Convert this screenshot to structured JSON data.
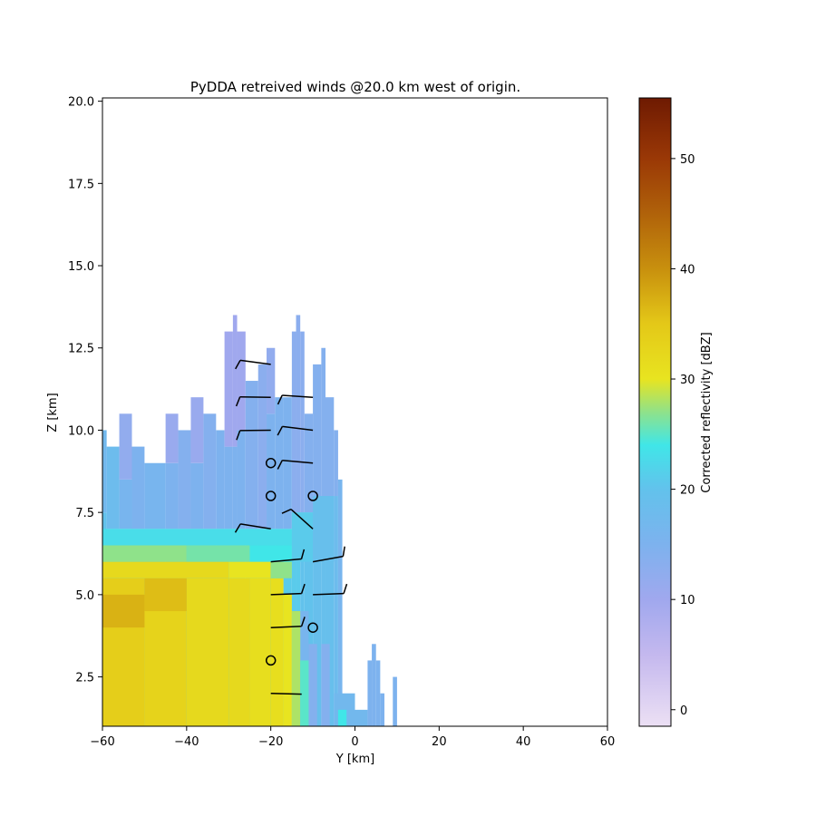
{
  "chart_data": {
    "type": "heatmap",
    "title": "PyDDA retreived winds @20.0 km west of origin.",
    "xlabel": "Y [km]",
    "ylabel": "Z [km]",
    "xlim": [
      -60,
      60
    ],
    "ylim": [
      1.0,
      20.1
    ],
    "xticks": [
      -60,
      -40,
      -20,
      0,
      20,
      40,
      60
    ],
    "xtick_labels": [
      "−60",
      "−40",
      "−20",
      "0",
      "20",
      "40",
      "60"
    ],
    "yticks": [
      2.5,
      5.0,
      7.5,
      10.0,
      12.5,
      15.0,
      17.5,
      20.0
    ],
    "ytick_labels": [
      "2.5",
      "5.0",
      "7.5",
      "10.0",
      "12.5",
      "15.0",
      "17.5",
      "20.0"
    ],
    "grid": false,
    "colorbar": {
      "label": "Corrected reflectivity [dBZ]",
      "range": [
        -1.5,
        55.5
      ],
      "ticks": [
        0,
        10,
        20,
        30,
        40,
        50
      ],
      "tick_labels": [
        "0",
        "10",
        "20",
        "30",
        "40",
        "50"
      ],
      "colormap_stops": [
        {
          "v": -1.5,
          "c": "#ece0f4"
        },
        {
          "v": 5,
          "c": "#c4b8ee"
        },
        {
          "v": 10,
          "c": "#a0a8ee"
        },
        {
          "v": 15,
          "c": "#7db2ee"
        },
        {
          "v": 20,
          "c": "#62c2ec"
        },
        {
          "v": 24,
          "c": "#40e6e8"
        },
        {
          "v": 27,
          "c": "#8fe28a"
        },
        {
          "v": 30,
          "c": "#e8e420"
        },
        {
          "v": 35,
          "c": "#e4c818"
        },
        {
          "v": 40,
          "c": "#c8900e"
        },
        {
          "v": 45,
          "c": "#b0620a"
        },
        {
          "v": 50,
          "c": "#9a3806"
        },
        {
          "v": 55.5,
          "c": "#6e1a02"
        }
      ]
    },
    "reflectivity": {
      "cell_width_km": 1,
      "cell_height_km": 0.5,
      "columns": [
        {
          "y0": -60,
          "y1": -59,
          "top": 10.0,
          "layers": [
            {
              "z": 7.5,
              "v": 20
            },
            {
              "z": 10.0,
              "v": 17
            }
          ]
        },
        {
          "y0": -59,
          "y1": -56,
          "top": 9.5,
          "layers": [
            {
              "z": 7.0,
              "v": 22
            },
            {
              "z": 9.5,
              "v": 18
            }
          ]
        },
        {
          "y0": -56,
          "y1": -53,
          "top": 10.5,
          "layers": [
            {
              "z": 7.0,
              "v": 22
            },
            {
              "z": 8.5,
              "v": 16
            },
            {
              "z": 10.5,
              "v": 12
            }
          ]
        },
        {
          "y0": -53,
          "y1": -50,
          "top": 9.5,
          "layers": [
            {
              "z": 7.0,
              "v": 21
            },
            {
              "z": 9.5,
              "v": 15
            }
          ]
        },
        {
          "y0": -50,
          "y1": -45,
          "top": 9.0,
          "layers": [
            {
              "z": 7.0,
              "v": 21
            },
            {
              "z": 9.0,
              "v": 16
            }
          ]
        },
        {
          "y0": -45,
          "y1": -42,
          "top": 10.5,
          "layers": [
            {
              "z": 7.0,
              "v": 21
            },
            {
              "z": 9.0,
              "v": 15
            },
            {
              "z": 10.5,
              "v": 11
            }
          ]
        },
        {
          "y0": -42,
          "y1": -39,
          "top": 10.0,
          "layers": [
            {
              "z": 7.0,
              "v": 21
            },
            {
              "z": 10.0,
              "v": 14
            }
          ]
        },
        {
          "y0": -39,
          "y1": -36,
          "top": 11.0,
          "layers": [
            {
              "z": 7.0,
              "v": 21
            },
            {
              "z": 9.0,
              "v": 15
            },
            {
              "z": 11.0,
              "v": 11
            }
          ]
        },
        {
          "y0": -36,
          "y1": -33,
          "top": 10.5,
          "layers": [
            {
              "z": 7.0,
              "v": 21
            },
            {
              "z": 10.5,
              "v": 14
            }
          ]
        },
        {
          "y0": -33,
          "y1": -31,
          "top": 10.0,
          "layers": [
            {
              "z": 7.0,
              "v": 21
            },
            {
              "z": 10.0,
              "v": 15
            }
          ]
        },
        {
          "y0": -31,
          "y1": -29,
          "top": 13.0,
          "layers": [
            {
              "z": 7.0,
              "v": 21
            },
            {
              "z": 9.5,
              "v": 15
            },
            {
              "z": 13.0,
              "v": 10
            }
          ]
        },
        {
          "y0": -29,
          "y1": -28,
          "top": 13.5,
          "layers": [
            {
              "z": 7.0,
              "v": 21
            },
            {
              "z": 9.5,
              "v": 15
            },
            {
              "z": 13.5,
              "v": 10
            }
          ]
        },
        {
          "y0": -28,
          "y1": -26,
          "top": 13.0,
          "layers": [
            {
              "z": 7.0,
              "v": 21
            },
            {
              "z": 10.0,
              "v": 15
            },
            {
              "z": 13.0,
              "v": 10
            }
          ]
        },
        {
          "y0": -26,
          "y1": -23,
          "top": 11.5,
          "layers": [
            {
              "z": 7.0,
              "v": 21
            },
            {
              "z": 11.5,
              "v": 14
            }
          ]
        },
        {
          "y0": -23,
          "y1": -21,
          "top": 12.0,
          "layers": [
            {
              "z": 7.0,
              "v": 21
            },
            {
              "z": 12.0,
              "v": 13
            }
          ]
        },
        {
          "y0": -21,
          "y1": -19,
          "top": 12.5,
          "layers": [
            {
              "z": 7.0,
              "v": 21
            },
            {
              "z": 10.5,
              "v": 15
            },
            {
              "z": 12.5,
              "v": 12
            }
          ]
        },
        {
          "y0": -19,
          "y1": -17,
          "top": 11.0,
          "layers": [
            {
              "z": 7.0,
              "v": 21
            },
            {
              "z": 11.0,
              "v": 15
            }
          ]
        },
        {
          "y0": -17,
          "y1": -15,
          "top": 11.0,
          "layers": [
            {
              "z": 7.0,
              "v": 21
            },
            {
              "z": 11.0,
              "v": 15
            }
          ]
        },
        {
          "y0": -15,
          "y1": -14,
          "top": 13.0,
          "layers": [
            {
              "z": 7.5,
              "v": 21
            },
            {
              "z": 13.0,
              "v": 13
            }
          ]
        },
        {
          "y0": -14,
          "y1": -13,
          "top": 13.5,
          "layers": [
            {
              "z": 7.5,
              "v": 21
            },
            {
              "z": 13.5,
              "v": 13
            }
          ]
        },
        {
          "y0": -13,
          "y1": -12,
          "top": 13.0,
          "layers": [
            {
              "z": 7.5,
              "v": 20
            },
            {
              "z": 13.0,
              "v": 13
            }
          ]
        },
        {
          "y0": -12,
          "y1": -10,
          "top": 10.5,
          "layers": [
            {
              "z": 7.5,
              "v": 20
            },
            {
              "z": 10.5,
              "v": 14
            }
          ]
        },
        {
          "y0": -10,
          "y1": -8,
          "top": 12.0,
          "layers": [
            {
              "z": 7.5,
              "v": 19
            },
            {
              "z": 12.0,
              "v": 14
            }
          ]
        },
        {
          "y0": -8,
          "y1": -7,
          "top": 12.5,
          "layers": [
            {
              "z": 7.5,
              "v": 19
            },
            {
              "z": 12.5,
              "v": 14
            }
          ]
        },
        {
          "y0": -7,
          "y1": -5,
          "top": 11.0,
          "layers": [
            {
              "z": 7.5,
              "v": 19
            },
            {
              "z": 11.0,
              "v": 14
            }
          ]
        },
        {
          "y0": -5,
          "y1": -4,
          "top": 10.0,
          "layers": [
            {
              "z": 8.0,
              "v": 18
            },
            {
              "z": 10.0,
              "v": 14
            }
          ]
        },
        {
          "y0": -4,
          "y1": -3,
          "top": 8.5,
          "layers": [
            {
              "z": 8.5,
              "v": 16
            }
          ]
        },
        {
          "y0": -13,
          "y1": -11,
          "top": 4.5,
          "layers": [
            {
              "z": 4.5,
              "v": 16
            }
          ]
        },
        {
          "y0": -11,
          "y1": -9,
          "top": 3.5,
          "layers": [
            {
              "z": 3.5,
              "v": 14
            }
          ]
        },
        {
          "y0": -8,
          "y1": -6,
          "top": 3.5,
          "layers": [
            {
              "z": 3.5,
              "v": 14
            }
          ]
        },
        {
          "y0": -5,
          "y1": 0,
          "top": 2.0,
          "layers": [
            {
              "z": 2.0,
              "v": 17
            }
          ]
        },
        {
          "y0": 0,
          "y1": 3,
          "top": 1.5,
          "layers": [
            {
              "z": 1.5,
              "v": 17
            }
          ]
        },
        {
          "y0": 3,
          "y1": 4,
          "top": 3.0,
          "layers": [
            {
              "z": 3.0,
              "v": 15
            }
          ]
        },
        {
          "y0": 4,
          "y1": 5,
          "top": 3.5,
          "layers": [
            {
              "z": 3.5,
              "v": 15
            }
          ]
        },
        {
          "y0": 5,
          "y1": 6,
          "top": 3.0,
          "layers": [
            {
              "z": 3.0,
              "v": 15
            }
          ]
        },
        {
          "y0": 6,
          "y1": 7,
          "top": 2.0,
          "layers": [
            {
              "z": 2.0,
              "v": 15
            }
          ]
        },
        {
          "y0": 9,
          "y1": 10,
          "top": 2.5,
          "layers": [
            {
              "z": 2.5,
              "v": 15
            }
          ]
        }
      ],
      "lower_band": [
        {
          "y0": -60,
          "y1": -50,
          "z0": 1.0,
          "z1": 5.5,
          "v": 34
        },
        {
          "y0": -50,
          "y1": -40,
          "z0": 1.0,
          "z1": 5.5,
          "v": 33
        },
        {
          "y0": -40,
          "y1": -30,
          "z0": 1.0,
          "z1": 5.5,
          "v": 32
        },
        {
          "y0": -30,
          "y1": -25,
          "z0": 1.0,
          "z1": 5.5,
          "v": 32
        },
        {
          "y0": -25,
          "y1": -20,
          "z0": 1.0,
          "z1": 5.5,
          "v": 31
        },
        {
          "y0": -20,
          "y1": -17,
          "z0": 1.0,
          "z1": 5.5,
          "v": 31
        },
        {
          "y0": -17,
          "y1": -15,
          "z0": 1.0,
          "z1": 5.0,
          "v": 30
        },
        {
          "y0": -15,
          "y1": -13,
          "z0": 1.0,
          "z1": 4.5,
          "v": 28
        },
        {
          "y0": -60,
          "y1": -50,
          "z0": 4.0,
          "z1": 5.0,
          "v": 37
        },
        {
          "y0": -50,
          "y1": -40,
          "z0": 4.5,
          "z1": 5.5,
          "v": 36
        },
        {
          "y0": -60,
          "y1": -30,
          "z0": 5.5,
          "z1": 6.0,
          "v": 32
        },
        {
          "y0": -30,
          "y1": -20,
          "z0": 5.5,
          "z1": 6.0,
          "v": 30
        },
        {
          "y0": -20,
          "y1": -15,
          "z0": 5.5,
          "z1": 6.0,
          "v": 27
        },
        {
          "y0": -60,
          "y1": -40,
          "z0": 6.0,
          "z1": 6.5,
          "v": 27
        },
        {
          "y0": -40,
          "y1": -25,
          "z0": 6.0,
          "z1": 6.5,
          "v": 26
        },
        {
          "y0": -25,
          "y1": -15,
          "z0": 6.0,
          "z1": 6.5,
          "v": 24
        },
        {
          "y0": -60,
          "y1": -15,
          "z0": 6.5,
          "z1": 7.0,
          "v": 23
        },
        {
          "y0": -15,
          "y1": -10,
          "z0": 6.0,
          "z1": 7.5,
          "v": 21
        },
        {
          "y0": -10,
          "y1": -5,
          "z0": 6.0,
          "z1": 8.0,
          "v": 19
        },
        {
          "y0": -13,
          "y1": -11,
          "z0": 1.0,
          "z1": 3.0,
          "v": 25
        },
        {
          "y0": -4,
          "y1": -2,
          "z0": 1.0,
          "z1": 1.5,
          "v": 24
        }
      ]
    },
    "wind_barbs": [
      {
        "y": -20,
        "z": 12.0,
        "dir_y": -6,
        "dir_z": 0.9,
        "flags": 1
      },
      {
        "y": -10,
        "z": 11.0,
        "dir_y": -7,
        "dir_z": 0.5,
        "flags": 1
      },
      {
        "y": -20,
        "z": 11.0,
        "dir_y": -7,
        "dir_z": 0.1,
        "flags": 1
      },
      {
        "y": -10,
        "z": 10.0,
        "dir_y": -6,
        "dir_z": 0.8,
        "flags": 1
      },
      {
        "y": -20,
        "z": 10.0,
        "dir_y": -7,
        "dir_z": -0.1,
        "flags": 1
      },
      {
        "y": -10,
        "z": 9.0,
        "dir_y": -6,
        "dir_z": 0.6,
        "flags": 1
      },
      {
        "y": -20,
        "z": 7.0,
        "dir_y": -5,
        "dir_z": 0.9,
        "flags": 1
      },
      {
        "y": -10,
        "z": 7.0,
        "dir_y": -1,
        "dir_z": 1.0,
        "flags": 1
      },
      {
        "y": -20,
        "z": 6.0,
        "dir_y": 6,
        "dir_z": 0.6,
        "flags": 1
      },
      {
        "y": -10,
        "z": 6.0,
        "dir_y": 4,
        "dir_z": 0.8,
        "flags": 1
      },
      {
        "y": -20,
        "z": 5.0,
        "dir_y": 7,
        "dir_z": 0.3,
        "flags": 1
      },
      {
        "y": -10,
        "z": 5.0,
        "dir_y": 7,
        "dir_z": 0.3,
        "flags": 1
      },
      {
        "y": -20,
        "z": 4.0,
        "dir_y": 7,
        "dir_z": 0.3,
        "flags": 1
      },
      {
        "y": -20,
        "z": 2.0,
        "dir_y": 7,
        "dir_z": -0.2,
        "flags": 0
      }
    ],
    "calm_circles": [
      {
        "y": -20,
        "z": 9.0
      },
      {
        "y": -20,
        "z": 8.0
      },
      {
        "y": -10,
        "z": 8.0
      },
      {
        "y": -10,
        "z": 4.0
      },
      {
        "y": -20,
        "z": 3.0
      }
    ]
  }
}
